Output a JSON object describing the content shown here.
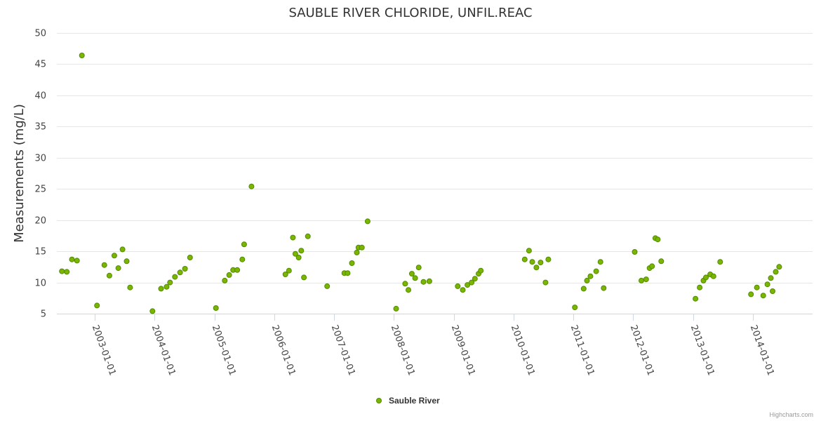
{
  "chart_data": {
    "type": "scatter",
    "title": "SAUBLE RIVER CHLORIDE, UNFIL.REAC",
    "xlabel": "",
    "ylabel": "Measurements (mg/L)",
    "ylim": [
      5,
      50
    ],
    "yticks": [
      5,
      10,
      15,
      20,
      25,
      30,
      35,
      40,
      45,
      50
    ],
    "xlim": [
      "2002-05-15",
      "2014-12-31"
    ],
    "xticks": [
      "2003-01-01",
      "2004-01-01",
      "2005-01-01",
      "2006-01-01",
      "2007-01-01",
      "2008-01-01",
      "2009-01-01",
      "2010-01-01",
      "2011-01-01",
      "2012-01-01",
      "2013-01-01",
      "2014-01-01"
    ],
    "grid": true,
    "legend_position": "bottom-center",
    "colors": {
      "marker_fill": "#7cb500",
      "marker_stroke": "#4f8c00",
      "grid": "#e6e6e6",
      "axis": "#ccd6eb"
    },
    "series": [
      {
        "name": "Sauble River",
        "points": [
          [
            "2002-06-15",
            11.8
          ],
          [
            "2002-07-15",
            11.7
          ],
          [
            "2002-08-15",
            13.7
          ],
          [
            "2002-09-15",
            13.5
          ],
          [
            "2002-10-15",
            46.4
          ],
          [
            "2003-01-15",
            6.3
          ],
          [
            "2003-03-01",
            12.8
          ],
          [
            "2003-04-01",
            11.1
          ],
          [
            "2003-05-01",
            14.3
          ],
          [
            "2003-05-25",
            12.3
          ],
          [
            "2003-06-20",
            15.3
          ],
          [
            "2003-07-15",
            13.4
          ],
          [
            "2003-08-05",
            9.2
          ],
          [
            "2003-12-20",
            5.4
          ],
          [
            "2004-02-10",
            9.0
          ],
          [
            "2004-03-15",
            9.3
          ],
          [
            "2004-04-05",
            10.0
          ],
          [
            "2004-05-05",
            10.9
          ],
          [
            "2004-06-05",
            11.6
          ],
          [
            "2004-07-05",
            12.2
          ],
          [
            "2004-08-05",
            14.0
          ],
          [
            "2005-01-10",
            5.9
          ],
          [
            "2005-03-05",
            10.3
          ],
          [
            "2005-04-01",
            11.2
          ],
          [
            "2005-04-25",
            12.0
          ],
          [
            "2005-05-20",
            12.0
          ],
          [
            "2005-06-20",
            13.7
          ],
          [
            "2005-07-01",
            16.1
          ],
          [
            "2005-08-15",
            25.4
          ],
          [
            "2006-03-10",
            11.3
          ],
          [
            "2006-04-01",
            11.9
          ],
          [
            "2006-04-25",
            17.2
          ],
          [
            "2006-05-10",
            14.6
          ],
          [
            "2006-05-30",
            14.0
          ],
          [
            "2006-06-15",
            15.1
          ],
          [
            "2006-07-01",
            10.8
          ],
          [
            "2006-07-25",
            17.4
          ],
          [
            "2006-11-20",
            9.4
          ],
          [
            "2007-03-05",
            11.5
          ],
          [
            "2007-03-25",
            11.5
          ],
          [
            "2007-04-20",
            13.1
          ],
          [
            "2007-05-20",
            14.8
          ],
          [
            "2007-05-30",
            15.6
          ],
          [
            "2007-06-20",
            15.6
          ],
          [
            "2007-07-25",
            19.8
          ],
          [
            "2008-01-15",
            5.8
          ],
          [
            "2008-03-10",
            9.8
          ],
          [
            "2008-03-30",
            8.8
          ],
          [
            "2008-04-20",
            11.4
          ],
          [
            "2008-05-10",
            10.7
          ],
          [
            "2008-06-01",
            12.4
          ],
          [
            "2008-06-30",
            10.1
          ],
          [
            "2008-08-05",
            10.2
          ],
          [
            "2009-01-25",
            9.4
          ],
          [
            "2009-02-25",
            8.8
          ],
          [
            "2009-03-25",
            9.6
          ],
          [
            "2009-04-20",
            10.0
          ],
          [
            "2009-05-10",
            10.6
          ],
          [
            "2009-06-01",
            11.4
          ],
          [
            "2009-06-15",
            11.9
          ],
          [
            "2010-03-10",
            13.7
          ],
          [
            "2010-04-05",
            15.1
          ],
          [
            "2010-04-25",
            13.3
          ],
          [
            "2010-05-20",
            12.4
          ],
          [
            "2010-06-15",
            13.2
          ],
          [
            "2010-07-15",
            10.0
          ],
          [
            "2010-08-01",
            13.7
          ],
          [
            "2011-01-10",
            6.0
          ],
          [
            "2011-03-05",
            9.0
          ],
          [
            "2011-03-25",
            10.3
          ],
          [
            "2011-04-15",
            11.0
          ],
          [
            "2011-05-20",
            11.8
          ],
          [
            "2011-06-15",
            13.3
          ],
          [
            "2011-07-05",
            9.1
          ],
          [
            "2012-01-10",
            14.9
          ],
          [
            "2012-02-20",
            10.3
          ],
          [
            "2012-03-20",
            10.5
          ],
          [
            "2012-04-10",
            12.3
          ],
          [
            "2012-04-25",
            12.6
          ],
          [
            "2012-05-15",
            17.1
          ],
          [
            "2012-05-30",
            16.9
          ],
          [
            "2012-06-20",
            13.4
          ],
          [
            "2013-01-15",
            7.4
          ],
          [
            "2013-02-10",
            9.2
          ],
          [
            "2013-03-05",
            10.3
          ],
          [
            "2013-03-20",
            10.8
          ],
          [
            "2013-04-15",
            11.3
          ],
          [
            "2013-05-05",
            11.0
          ],
          [
            "2013-06-15",
            13.3
          ],
          [
            "2013-12-20",
            8.1
          ],
          [
            "2014-01-25",
            9.2
          ],
          [
            "2014-03-05",
            7.9
          ],
          [
            "2014-03-30",
            9.7
          ],
          [
            "2014-04-20",
            10.7
          ],
          [
            "2014-05-01",
            8.6
          ],
          [
            "2014-05-20",
            11.7
          ],
          [
            "2014-06-10",
            12.5
          ]
        ]
      }
    ],
    "legend": [
      "Sauble River"
    ],
    "credits": "Highcharts.com"
  }
}
